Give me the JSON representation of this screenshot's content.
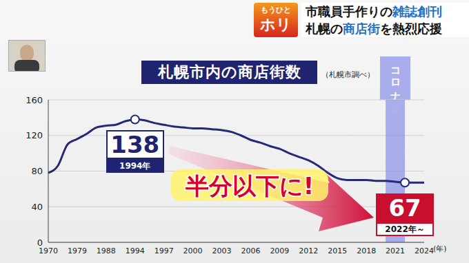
{
  "banner": {
    "logo": [
      "もうひと",
      "ホリ"
    ],
    "headlines": [
      [
        {
          "text": "市職員手作りの",
          "highlight": false
        },
        {
          "text": "雑誌創刊",
          "highlight": true
        }
      ],
      [
        {
          "text": "札幌の",
          "highlight": false
        },
        {
          "text": "商店街",
          "highlight": true
        },
        {
          "text": "を熱烈応援",
          "highlight": false
        }
      ]
    ]
  },
  "chart_data": {
    "type": "line",
    "title": "札幌市内の商店街数",
    "source": "（札幌市調べ）",
    "x_label": "(年)",
    "categories": [
      "1970",
      null,
      null,
      "1979",
      null,
      null,
      "1988",
      null,
      null,
      "1994",
      null,
      null,
      "1997",
      null,
      null,
      "2000",
      null,
      null,
      "2003",
      null,
      null,
      "2006",
      null,
      null,
      "2009",
      null,
      null,
      "2012",
      null,
      null,
      "2015",
      null,
      null,
      "2018",
      null,
      null,
      "2021",
      null,
      null,
      "2024"
    ],
    "values": [
      78,
      86,
      110,
      116,
      122,
      129,
      131,
      132,
      136,
      138,
      137,
      134,
      132,
      130,
      129,
      128,
      128,
      127,
      126,
      124,
      120,
      115,
      112,
      108,
      105,
      100,
      96,
      92,
      86,
      78,
      72,
      70,
      70,
      70,
      69,
      69,
      68,
      67,
      67,
      67
    ],
    "color": "#252a78",
    "ylim": [
      0,
      160
    ],
    "yticks": [
      0,
      40,
      80,
      120,
      160
    ],
    "grid": true,
    "highlight_range": {
      "label": "コロナ禍",
      "start": 35,
      "end": 37
    },
    "annotations": [
      {
        "index": 9,
        "value": 138,
        "label": "1994年",
        "color": "#1f2370"
      },
      {
        "index": 37,
        "value": 67,
        "label": "2022年～",
        "color": "#c8102e"
      }
    ],
    "callout": "半分以下に!"
  }
}
